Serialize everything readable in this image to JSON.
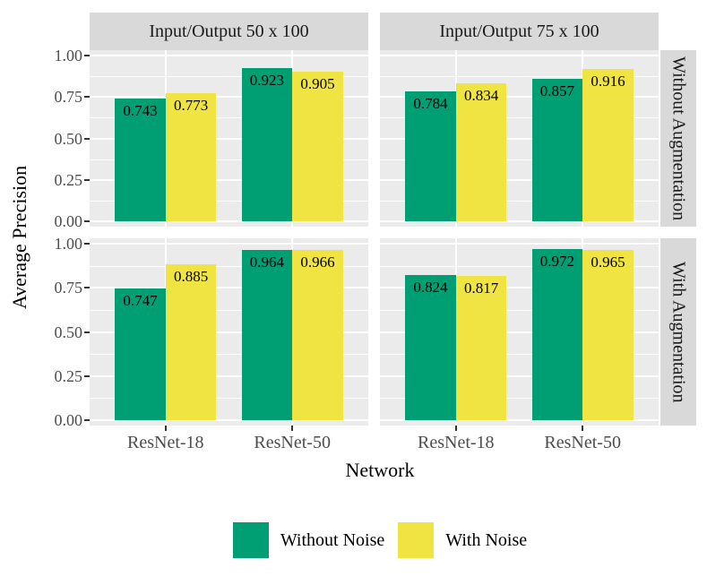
{
  "chart_data": {
    "type": "bar",
    "xlabel": "Network",
    "ylabel": "Average Precision",
    "ylim": [
      0,
      1
    ],
    "ytick_values": [
      1.0,
      0.75,
      0.5,
      0.25,
      0.0
    ],
    "ytick_labels": [
      "1.00",
      "0.75",
      "0.50",
      "0.25",
      "0.00"
    ],
    "yminor_values": [
      0.875,
      0.625,
      0.375,
      0.125
    ],
    "categories": [
      "ResNet-18",
      "ResNet-50"
    ],
    "col_facets": [
      {
        "label": "Input/Output 50 x 100"
      },
      {
        "label": "Input/Output 75 x 100"
      }
    ],
    "row_facets": [
      {
        "label": "Without Augmentation"
      },
      {
        "label": "With Augmentation"
      }
    ],
    "series": [
      {
        "name": "Without Noise",
        "color": "#009E73"
      },
      {
        "name": "With Noise",
        "color": "#F0E442"
      }
    ],
    "panels": [
      {
        "row": 0,
        "col": 0,
        "values": [
          [
            0.743,
            0.773
          ],
          [
            0.923,
            0.905
          ]
        ]
      },
      {
        "row": 0,
        "col": 1,
        "values": [
          [
            0.784,
            0.834
          ],
          [
            0.857,
            0.916
          ]
        ]
      },
      {
        "row": 1,
        "col": 0,
        "values": [
          [
            0.747,
            0.885
          ],
          [
            0.964,
            0.966
          ]
        ]
      },
      {
        "row": 1,
        "col": 1,
        "values": [
          [
            0.824,
            0.817
          ],
          [
            0.972,
            0.965
          ]
        ]
      }
    ],
    "legend_position": "bottom",
    "grid": true,
    "colors": {
      "panel_bg": "#EBEBEB",
      "strip_bg": "#D9D9D9",
      "grid_color": "#FFFFFF",
      "axis_text": "#4D4D4D",
      "tick_mark": "#333333",
      "label_text": "#000000"
    }
  }
}
